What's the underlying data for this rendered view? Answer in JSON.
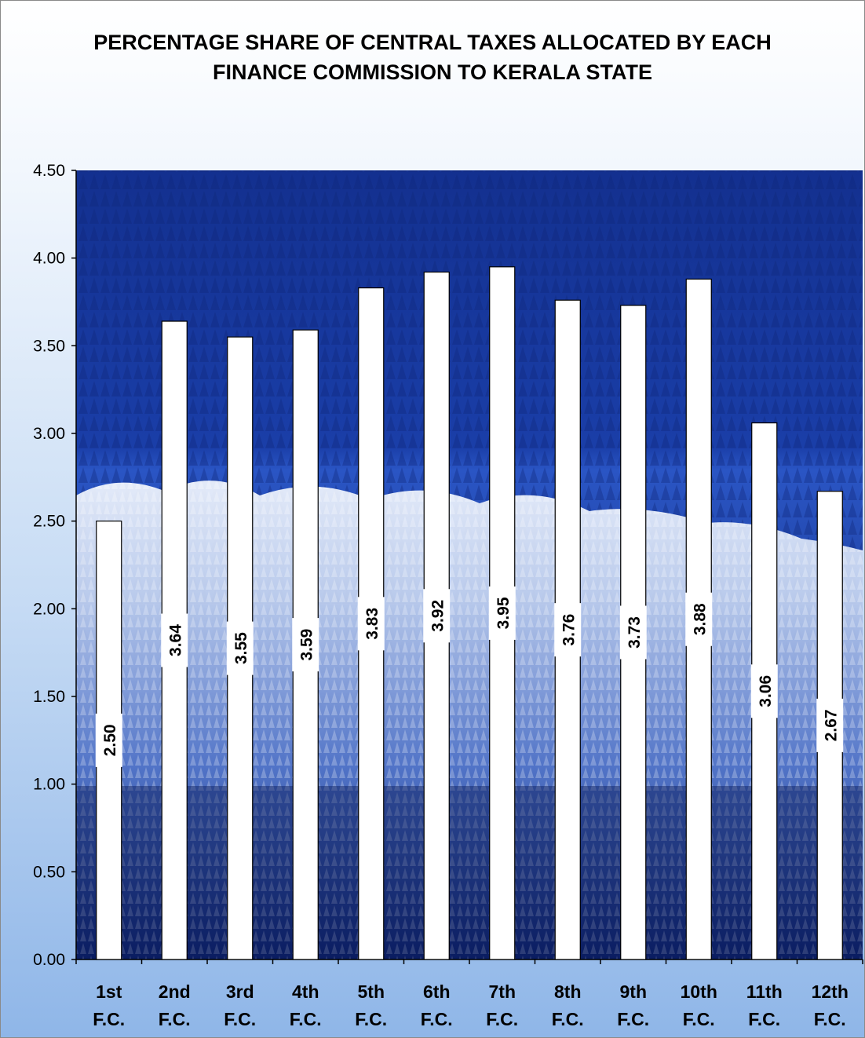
{
  "chart_data": {
    "type": "bar",
    "title": "PERCENTAGE SHARE OF CENTRAL TAXES ALLOCATED BY EACH\nFINANCE COMMISSION TO KERALA STATE",
    "xlabel": "",
    "ylabel": "",
    "categories": [
      [
        "1st",
        "F.C."
      ],
      [
        "2nd",
        "F.C."
      ],
      [
        "3rd",
        "F.C."
      ],
      [
        "4th",
        "F.C."
      ],
      [
        "5th",
        "F.C."
      ],
      [
        "6th",
        "F.C."
      ],
      [
        "7th",
        "F.C."
      ],
      [
        "8th",
        "F.C."
      ],
      [
        "9th",
        "F.C."
      ],
      [
        "10th",
        "F.C."
      ],
      [
        "11th",
        "F.C."
      ],
      [
        "12th",
        "F.C."
      ]
    ],
    "values": [
      2.5,
      3.64,
      3.55,
      3.59,
      3.83,
      3.92,
      3.95,
      3.76,
      3.73,
      3.88,
      3.06,
      2.67
    ],
    "data_labels": [
      "2.50",
      "3.64",
      "3.55",
      "3.59",
      "3.83",
      "3.92",
      "3.95",
      "3.76",
      "3.73",
      "3.88",
      "3.06",
      "2.67"
    ],
    "ylim": [
      0,
      4.5
    ],
    "yticks": [
      "0.00",
      "0.50",
      "1.00",
      "1.50",
      "2.00",
      "2.50",
      "3.00",
      "3.50",
      "4.00",
      "4.50"
    ],
    "grid": false,
    "legend": "none",
    "plot_background": "photo of snow-covered forest",
    "colors": {
      "bar_fill": "#ffffff",
      "bar_stroke": "#000000",
      "forest_dark": "#0b1f6e",
      "forest_mid": "#1f47b8",
      "snow": "#dfe8f8"
    }
  }
}
